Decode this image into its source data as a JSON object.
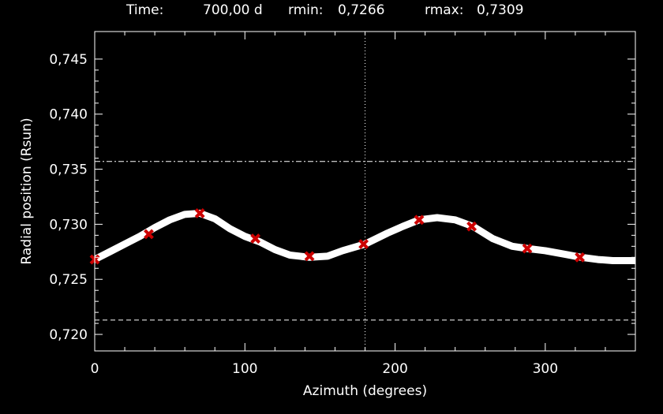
{
  "header": {
    "time_label": "Time:",
    "time_value": "700,00 d",
    "rmin_label": "rmin:",
    "rmin_value": "0,7266",
    "rmax_label": "rmax:",
    "rmax_value": "0,7309"
  },
  "chart_data": {
    "type": "line",
    "xlabel": "Azimuth (degrees)",
    "ylabel": "Radial position (Rsun)",
    "xlim": [
      0,
      360
    ],
    "ylim": [
      0.7185,
      0.7475
    ],
    "xticks": [
      0,
      100,
      200,
      300
    ],
    "xtick_labels": [
      "0",
      "100",
      "200",
      "300"
    ],
    "yticks": [
      0.72,
      0.725,
      0.73,
      0.735,
      0.74,
      0.745
    ],
    "ytick_labels": [
      "0,720",
      "0,725",
      "0,730",
      "0,735",
      "0,740",
      "0,745"
    ],
    "grid": false,
    "curve": {
      "x": [
        0,
        10,
        20,
        30,
        40,
        50,
        60,
        70,
        80,
        90,
        100,
        110,
        120,
        130,
        143,
        155,
        165,
        180,
        195,
        205,
        216,
        228,
        240,
        252,
        265,
        278,
        288,
        300,
        312,
        324,
        335,
        345,
        360
      ],
      "y": [
        0.7268,
        0.7275,
        0.7282,
        0.7289,
        0.7297,
        0.7304,
        0.7309,
        0.731,
        0.7305,
        0.7296,
        0.7289,
        0.7284,
        0.7277,
        0.7272,
        0.727,
        0.7271,
        0.7276,
        0.7282,
        0.7292,
        0.7298,
        0.7304,
        0.7306,
        0.7304,
        0.7298,
        0.7287,
        0.728,
        0.7278,
        0.7276,
        0.7273,
        0.727,
        0.7268,
        0.7267,
        0.7267
      ],
      "color": "#ffffff"
    },
    "markers": {
      "x": [
        0,
        36,
        70,
        107,
        143,
        179,
        216,
        251,
        288,
        323
      ],
      "y": [
        0.7268,
        0.7291,
        0.731,
        0.7287,
        0.7271,
        0.7282,
        0.7304,
        0.7298,
        0.7278,
        0.727
      ],
      "color": "#cc0000"
    },
    "hlines": [
      {
        "y": 0.7357,
        "style": "dash-dot"
      },
      {
        "y": 0.7213,
        "style": "dashed"
      }
    ],
    "vlines": [
      {
        "x": 180,
        "style": "dotted"
      }
    ]
  }
}
